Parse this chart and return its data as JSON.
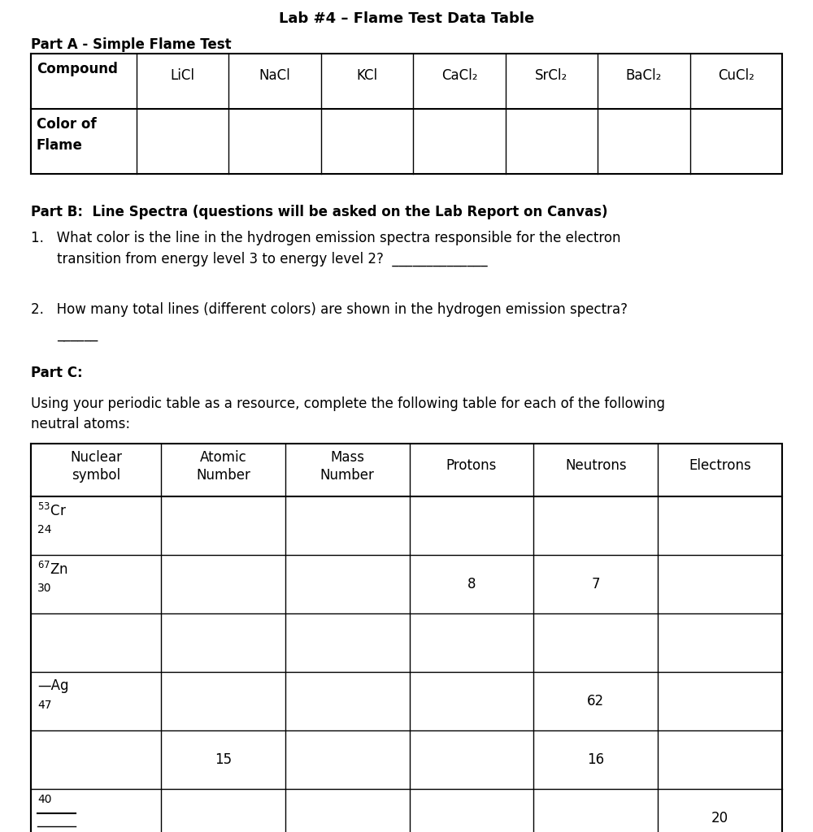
{
  "title": "Lab #4 – Flame Test Data Table",
  "bg_color": "#ffffff",
  "text_color": "#000000",
  "partA_label": "Part A - Simple Flame Test",
  "partA_compounds": [
    "Compound",
    "LiCl",
    "NaCl",
    "KCl",
    "CaCl₂",
    "SrCl₂",
    "BaCl₂",
    "CuCl₂"
  ],
  "partB_label": "Part B:  Line Spectra (questions will be asked on the Lab Report on Canvas)",
  "partC_label": "Part C:",
  "partC_intro_line1": "Using your periodic table as a resource, complete the following table for each of the following",
  "partC_intro_line2": "neutral atoms:",
  "partC_headers": [
    "Nuclear\nsymbol",
    "Atomic\nNumber",
    "Mass\nNumber",
    "Protons",
    "Neutrons",
    "Electrons"
  ]
}
